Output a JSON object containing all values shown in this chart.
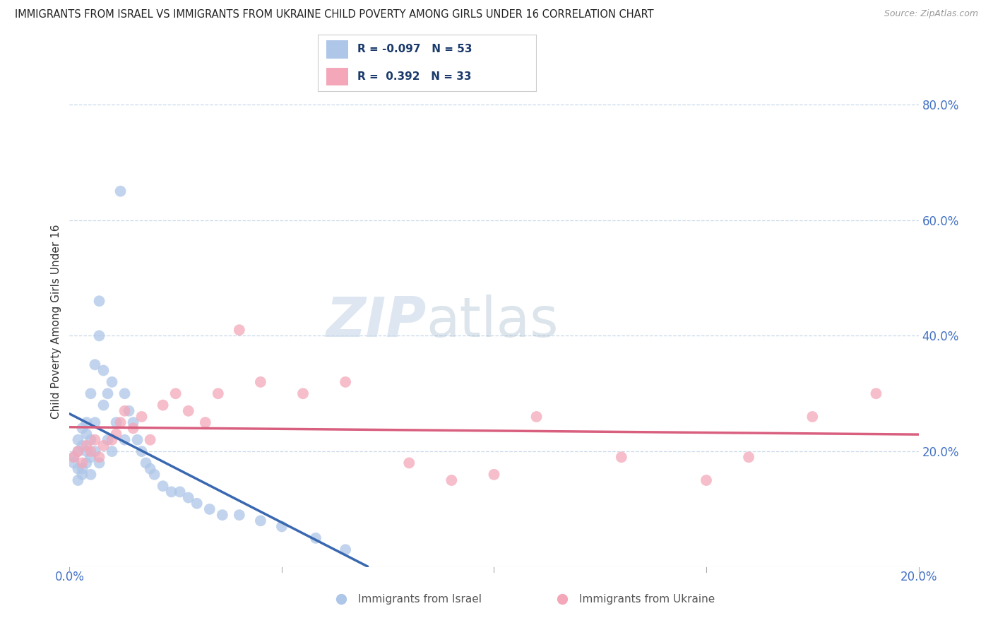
{
  "title": "IMMIGRANTS FROM ISRAEL VS IMMIGRANTS FROM UKRAINE CHILD POVERTY AMONG GIRLS UNDER 16 CORRELATION CHART",
  "source": "Source: ZipAtlas.com",
  "ylabel": "Child Poverty Among Girls Under 16",
  "xlim": [
    0.0,
    0.2
  ],
  "ylim": [
    0.0,
    0.85
  ],
  "yticks": [
    0.0,
    0.2,
    0.4,
    0.6,
    0.8
  ],
  "ytick_labels": [
    "",
    "20.0%",
    "40.0%",
    "60.0%",
    "80.0%"
  ],
  "xticks": [
    0.0,
    0.05,
    0.1,
    0.15,
    0.2
  ],
  "xtick_labels": [
    "0.0%",
    "",
    "",
    "",
    "20.0%"
  ],
  "israel_color": "#aec6e8",
  "ukraine_color": "#f4a7b9",
  "israel_line_color": "#3a68b0",
  "ukraine_line_color": "#d95f7f",
  "R_israel": -0.097,
  "N_israel": 53,
  "R_ukraine": 0.392,
  "N_ukraine": 33,
  "background_color": "#ffffff",
  "israel_scatter_x": [
    0.001,
    0.001,
    0.002,
    0.002,
    0.002,
    0.002,
    0.003,
    0.003,
    0.003,
    0.003,
    0.004,
    0.004,
    0.004,
    0.004,
    0.005,
    0.005,
    0.005,
    0.005,
    0.006,
    0.006,
    0.006,
    0.007,
    0.007,
    0.007,
    0.008,
    0.008,
    0.009,
    0.009,
    0.01,
    0.01,
    0.011,
    0.012,
    0.013,
    0.013,
    0.014,
    0.015,
    0.016,
    0.017,
    0.018,
    0.019,
    0.02,
    0.022,
    0.024,
    0.026,
    0.028,
    0.03,
    0.033,
    0.036,
    0.04,
    0.045,
    0.05,
    0.058,
    0.065
  ],
  "israel_scatter_y": [
    0.18,
    0.19,
    0.2,
    0.22,
    0.15,
    0.17,
    0.21,
    0.24,
    0.17,
    0.16,
    0.25,
    0.2,
    0.23,
    0.18,
    0.19,
    0.22,
    0.3,
    0.16,
    0.35,
    0.25,
    0.2,
    0.4,
    0.46,
    0.18,
    0.34,
    0.28,
    0.3,
    0.22,
    0.32,
    0.2,
    0.25,
    0.65,
    0.3,
    0.22,
    0.27,
    0.25,
    0.22,
    0.2,
    0.18,
    0.17,
    0.16,
    0.14,
    0.13,
    0.13,
    0.12,
    0.11,
    0.1,
    0.09,
    0.09,
    0.08,
    0.07,
    0.05,
    0.03
  ],
  "ukraine_scatter_x": [
    0.001,
    0.002,
    0.003,
    0.004,
    0.005,
    0.006,
    0.007,
    0.008,
    0.01,
    0.011,
    0.012,
    0.013,
    0.015,
    0.017,
    0.019,
    0.022,
    0.025,
    0.028,
    0.032,
    0.035,
    0.04,
    0.045,
    0.055,
    0.065,
    0.08,
    0.09,
    0.1,
    0.11,
    0.13,
    0.15,
    0.16,
    0.175,
    0.19
  ],
  "ukraine_scatter_y": [
    0.19,
    0.2,
    0.18,
    0.21,
    0.2,
    0.22,
    0.19,
    0.21,
    0.22,
    0.23,
    0.25,
    0.27,
    0.24,
    0.26,
    0.22,
    0.28,
    0.3,
    0.27,
    0.25,
    0.3,
    0.41,
    0.32,
    0.3,
    0.32,
    0.18,
    0.15,
    0.16,
    0.26,
    0.19,
    0.15,
    0.19,
    0.26,
    0.3
  ]
}
